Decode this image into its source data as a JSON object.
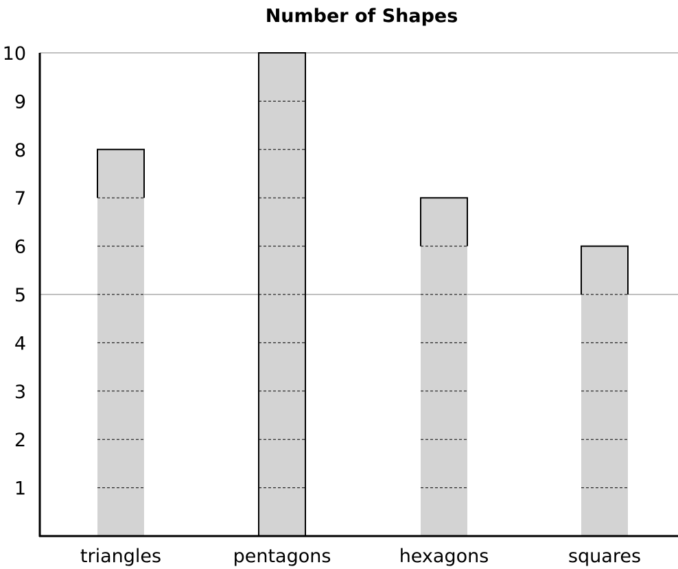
{
  "chart_data": {
    "type": "bar",
    "title": "Number of Shapes",
    "xlabel": "",
    "ylabel": "",
    "categories": [
      "triangles",
      "pentagons",
      "hexagons",
      "squares"
    ],
    "values": [
      8,
      10,
      7,
      6
    ],
    "ylim": [
      0,
      10
    ],
    "y_ticks": [
      "1",
      "2",
      "3",
      "4",
      "5",
      "6",
      "7",
      "8",
      "9",
      "10"
    ],
    "grid_lines_at": [
      5,
      10
    ],
    "legend": "none",
    "colors": {
      "bar_fill": "#d3d3d3",
      "bar_outline": "#000000",
      "unit_divider": "#000000",
      "grid": "#c0c0c0",
      "axis": "#000000"
    }
  }
}
